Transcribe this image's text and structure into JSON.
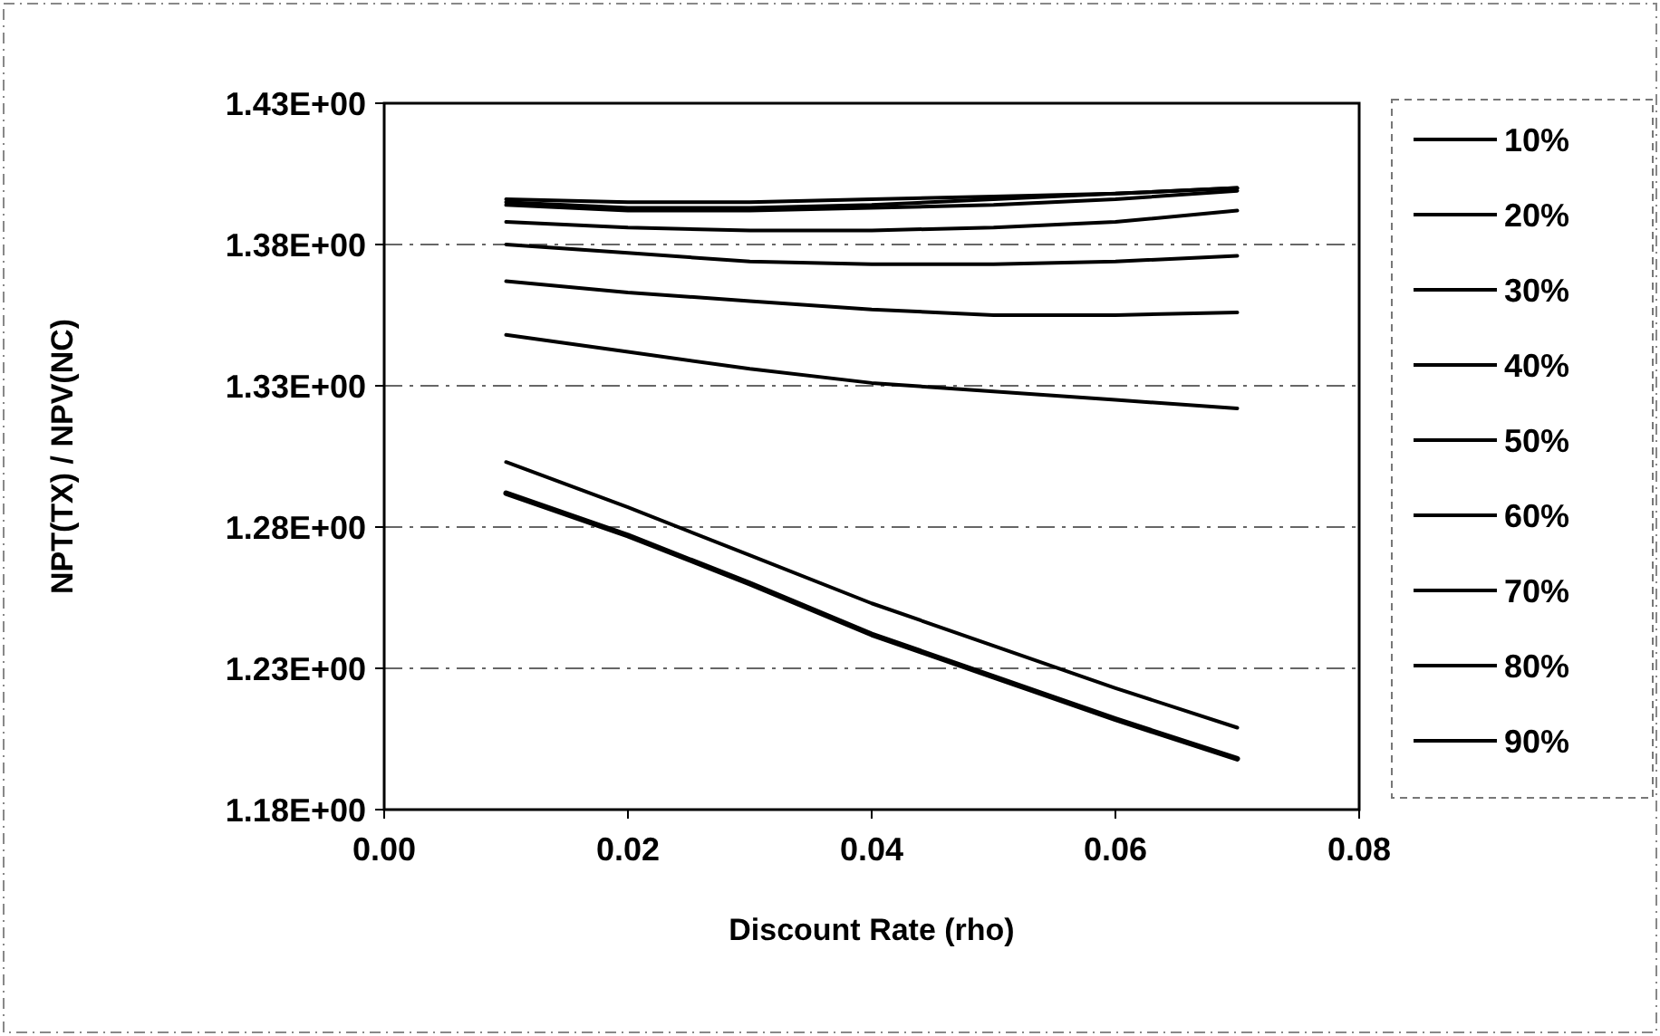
{
  "chart_data": {
    "type": "line",
    "xlabel": "Discount Rate (rho)",
    "ylabel": "NPT(TX) / NPV(NC)",
    "x": [
      0.01,
      0.02,
      0.03,
      0.04,
      0.05,
      0.06,
      0.07
    ],
    "xlim": [
      0,
      0.08
    ],
    "xticks": [
      {
        "value": 0,
        "label": "0.00"
      },
      {
        "value": 0.02,
        "label": "0.02"
      },
      {
        "value": 0.04,
        "label": "0.04"
      },
      {
        "value": 0.06,
        "label": "0.06"
      },
      {
        "value": 0.08,
        "label": "0.08"
      }
    ],
    "ylim": [
      1.18,
      1.43
    ],
    "yticks": [
      {
        "value": 1.18,
        "label": "1.18E+00"
      },
      {
        "value": 1.23,
        "label": "1.23E+00"
      },
      {
        "value": 1.28,
        "label": "1.28E+00"
      },
      {
        "value": 1.33,
        "label": "1.33E+00"
      },
      {
        "value": 1.38,
        "label": "1.38E+00"
      },
      {
        "value": 1.43,
        "label": "1.43E+00"
      }
    ],
    "grid": "y",
    "legend": "right",
    "marker": "none",
    "line_style": "solid",
    "series": [
      {
        "name": "10%",
        "color": "#000000",
        "values": [
          1.292,
          1.277,
          1.26,
          1.242,
          1.227,
          1.212,
          1.198
        ]
      },
      {
        "name": "20%",
        "color": "#000000",
        "values": [
          1.303,
          1.287,
          1.27,
          1.253,
          1.238,
          1.223,
          1.209
        ]
      },
      {
        "name": "30%",
        "color": "#000000",
        "values": [
          1.348,
          1.342,
          1.336,
          1.331,
          1.328,
          1.325,
          1.322
        ]
      },
      {
        "name": "40%",
        "color": "#000000",
        "values": [
          1.367,
          1.363,
          1.36,
          1.357,
          1.355,
          1.355,
          1.356
        ]
      },
      {
        "name": "50%",
        "color": "#000000",
        "values": [
          1.38,
          1.377,
          1.374,
          1.373,
          1.373,
          1.374,
          1.376
        ]
      },
      {
        "name": "60%",
        "color": "#000000",
        "values": [
          1.388,
          1.386,
          1.385,
          1.385,
          1.386,
          1.388,
          1.392
        ]
      },
      {
        "name": "70%",
        "color": "#000000",
        "values": [
          1.394,
          1.392,
          1.392,
          1.393,
          1.394,
          1.396,
          1.399
        ]
      },
      {
        "name": "80%",
        "color": "#000000",
        "values": [
          1.395,
          1.393,
          1.393,
          1.394,
          1.396,
          1.398,
          1.4
        ]
      },
      {
        "name": "90%",
        "color": "#000000",
        "values": [
          1.396,
          1.395,
          1.395,
          1.396,
          1.397,
          1.398,
          1.4
        ]
      }
    ]
  }
}
